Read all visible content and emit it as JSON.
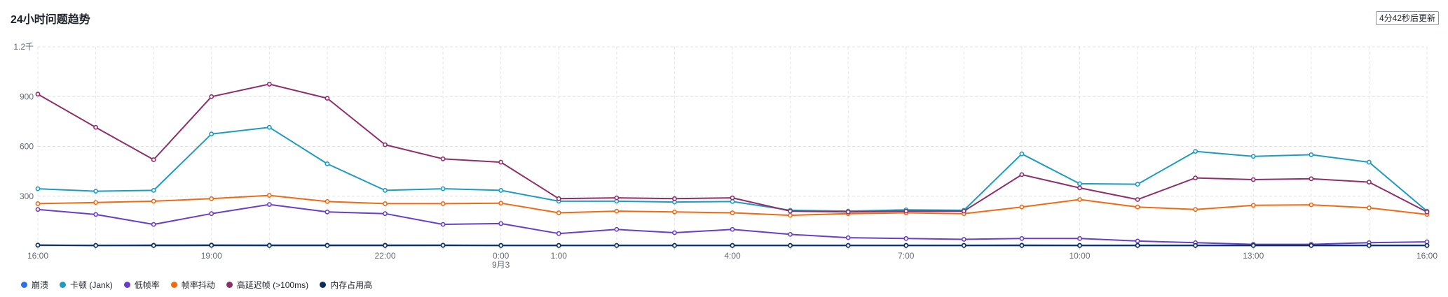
{
  "header": {
    "title": "24小时问题趋势",
    "refresh_label": "4分42秒后更新"
  },
  "chart_data": {
    "type": "line",
    "ylim": [
      0,
      1200
    ],
    "yticks": [
      0,
      300,
      600,
      900,
      1200
    ],
    "ytick_labels": [
      "",
      "300",
      "600",
      "900",
      "1.2千"
    ],
    "x": [
      "16:00",
      "17:00",
      "18:00",
      "19:00",
      "20:00",
      "21:00",
      "22:00",
      "23:00",
      "0:00",
      "1:00",
      "2:00",
      "3:00",
      "4:00",
      "5:00",
      "6:00",
      "7:00",
      "8:00",
      "9:00",
      "10:00",
      "11:00",
      "12:00",
      "13:00",
      "14:00",
      "15:00",
      "16:00"
    ],
    "xtick_labels": [
      "16:00",
      "",
      "",
      "19:00",
      "",
      "",
      "22:00",
      "",
      "0:00",
      "1:00",
      "",
      "",
      "4:00",
      "",
      "",
      "7:00",
      "",
      "",
      "10:00",
      "",
      "",
      "13:00",
      "",
      "",
      "16:00"
    ],
    "date_label": "9月3",
    "grid": true,
    "legend_position": "bottom-left",
    "series": [
      {
        "name": "崩溃",
        "color": "#2f6fe4",
        "values": [
          5,
          4,
          5,
          6,
          5,
          5,
          5,
          5,
          4,
          4,
          4,
          4,
          4,
          4,
          4,
          4,
          4,
          5,
          4,
          4,
          4,
          4,
          4,
          4,
          4
        ]
      },
      {
        "name": "卡顿 (Jank)",
        "color": "#1e9bc1",
        "values": [
          345,
          330,
          335,
          675,
          715,
          495,
          335,
          345,
          335,
          270,
          270,
          265,
          268,
          215,
          210,
          218,
          215,
          555,
          375,
          372,
          570,
          540,
          550,
          505,
          210
        ]
      },
      {
        "name": "低帧率",
        "color": "#6a3fc8",
        "values": [
          220,
          190,
          130,
          195,
          250,
          205,
          195,
          130,
          135,
          75,
          100,
          80,
          100,
          70,
          50,
          45,
          40,
          45,
          45,
          30,
          20,
          10,
          10,
          20,
          25
        ]
      },
      {
        "name": "帧率抖动",
        "color": "#f06a13",
        "values": [
          255,
          262,
          270,
          285,
          305,
          268,
          255,
          255,
          258,
          200,
          210,
          205,
          200,
          185,
          195,
          200,
          195,
          235,
          280,
          235,
          220,
          245,
          248,
          230,
          190
        ]
      },
      {
        "name": "高延迟帧 (>100ms)",
        "color": "#8f2f69",
        "values": [
          915,
          715,
          520,
          900,
          975,
          890,
          610,
          525,
          505,
          285,
          290,
          285,
          290,
          210,
          205,
          210,
          210,
          430,
          350,
          280,
          410,
          400,
          405,
          385,
          205
        ]
      },
      {
        "name": "内存占用高",
        "color": "#0d2e5a",
        "values": [
          5,
          3,
          3,
          4,
          3,
          3,
          3,
          4,
          3,
          3,
          3,
          3,
          3,
          3,
          3,
          3,
          3,
          3,
          3,
          3,
          3,
          3,
          3,
          3,
          3
        ]
      }
    ]
  }
}
